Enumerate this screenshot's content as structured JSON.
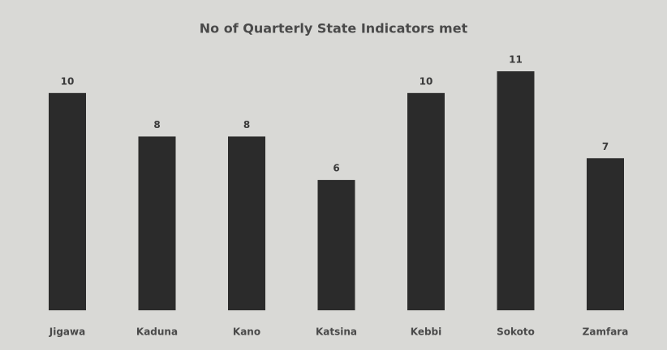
{
  "chart_data": {
    "type": "bar",
    "title": "No of Quarterly State Indicators met",
    "categories": [
      "Jigawa",
      "Kaduna",
      "Kano",
      "Katsina",
      "Kebbi",
      "Sokoto",
      "Zamfara"
    ],
    "values": [
      10,
      8,
      8,
      6,
      10,
      11,
      7
    ],
    "color": "#2b2b2b"
  }
}
